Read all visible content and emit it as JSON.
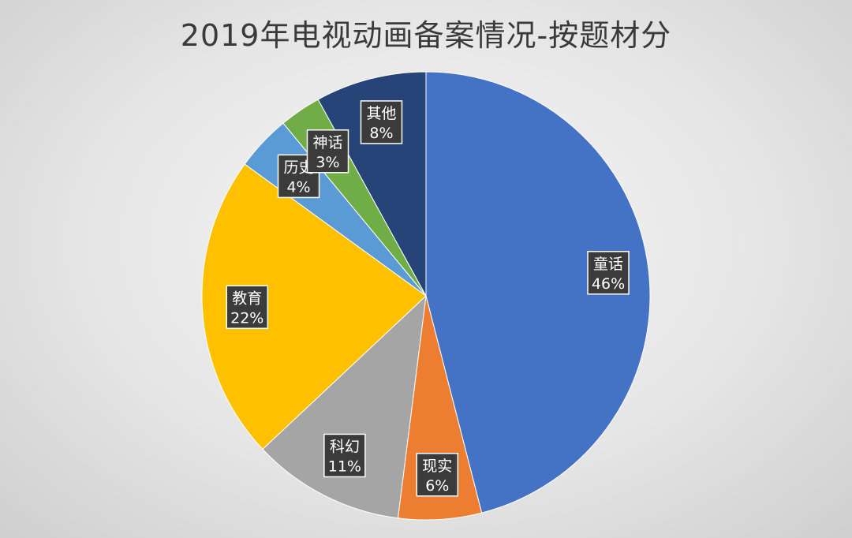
{
  "chart_data": {
    "type": "pie",
    "title": "2019年电视动画备案情况-按题材分",
    "slices": [
      {
        "name": "童话",
        "value": 46,
        "label": "46%",
        "color": "#4472C4"
      },
      {
        "name": "现实",
        "value": 6,
        "label": "6%",
        "color": "#ED7D31"
      },
      {
        "name": "科幻",
        "value": 11,
        "label": "11%",
        "color": "#A5A5A5"
      },
      {
        "name": "教育",
        "value": 22,
        "label": "22%",
        "color": "#FFC000"
      },
      {
        "name": "历史",
        "value": 4,
        "label": "4%",
        "color": "#5B9BD5"
      },
      {
        "name": "神话",
        "value": 3,
        "label": "3%",
        "color": "#70AD47"
      },
      {
        "name": "其他",
        "value": 8,
        "label": "8%",
        "color": "#264478"
      }
    ]
  }
}
